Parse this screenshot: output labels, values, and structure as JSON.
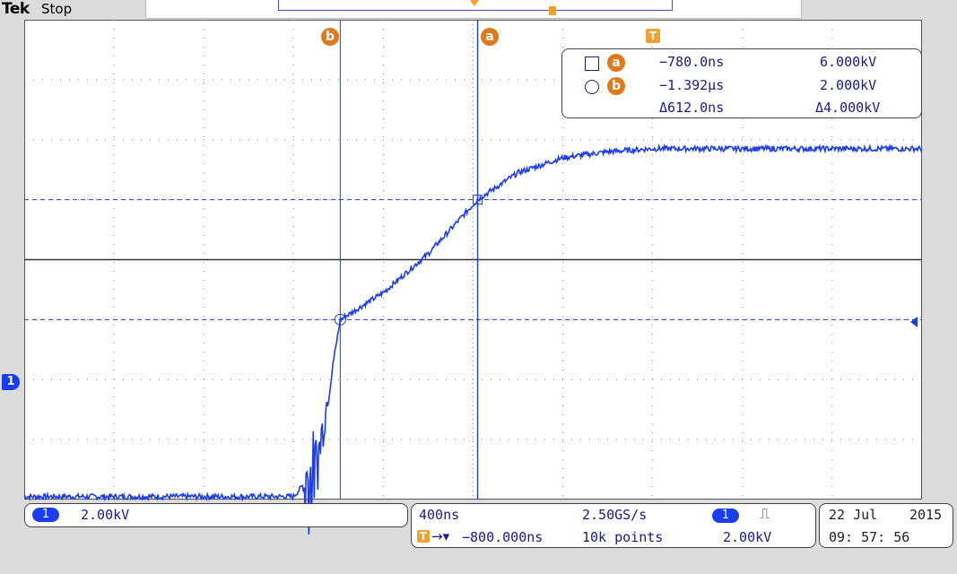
{
  "header": {
    "brand": "Tek",
    "status": "Stop"
  },
  "cursors": {
    "a_label": "a",
    "b_label": "b",
    "trigger_label": "T"
  },
  "readout": {
    "a": {
      "time": "−780.0ns",
      "value": "6.000kV"
    },
    "b": {
      "time": "−1.392μs",
      "value": "2.000kV"
    },
    "delta": {
      "time": "Δ612.0ns",
      "value": "Δ4.000kV"
    }
  },
  "channel": {
    "number": "1",
    "scale": "2.00kV"
  },
  "timebase": {
    "scale": "400ns",
    "sample_rate": "2.50GS/s",
    "trigger_position": "−800.000ns",
    "record_length": "10k points",
    "trigger_channel": "1",
    "trigger_slope_icon": "rising-edge-icon",
    "trigger_level": "2.00kV"
  },
  "datetime": {
    "date": "22 Jul",
    "year": "2015",
    "time": "09: 57: 56"
  },
  "colors": {
    "trace": "#1b3df0",
    "cursor": "#e0781c",
    "trigger": "#f2a12d",
    "text": "#1a1a8a"
  },
  "chart_data": {
    "type": "line",
    "x_per_div": "400ns",
    "y_per_div": "2.00kV",
    "divisions": {
      "x": 10,
      "y": 8
    },
    "grid": true,
    "x": [
      -2800,
      -2000,
      -1600,
      -1500,
      -1392,
      -1200,
      -1000,
      -780,
      -600,
      -400,
      -200,
      0,
      400,
      1000,
      2000
    ],
    "y": [
      -3.9,
      -3.9,
      -3.9,
      -3.0,
      2.0,
      2.9,
      4.2,
      6.0,
      6.9,
      7.4,
      7.6,
      7.7,
      7.7,
      7.7,
      7.7
    ]
  }
}
